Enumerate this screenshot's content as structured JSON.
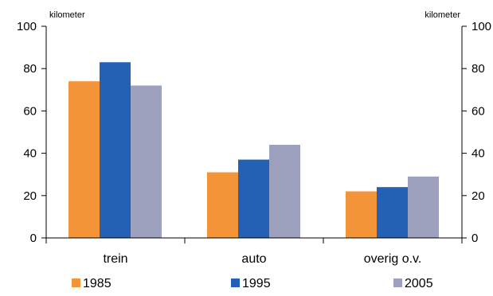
{
  "chart_data": {
    "type": "bar",
    "title": "",
    "xlabel": "",
    "ylabel_left": "kilometer",
    "ylabel_right": "kilometer",
    "categories": [
      "trein",
      "auto",
      "overig o.v."
    ],
    "series": [
      {
        "name": "1985",
        "values": [
          74,
          31,
          22
        ],
        "color": "#f39439"
      },
      {
        "name": "1995",
        "values": [
          83,
          37,
          24
        ],
        "color": "#2461b5"
      },
      {
        "name": "2005",
        "values": [
          72,
          44,
          29
        ],
        "color": "#9da1bd"
      }
    ],
    "ylim": [
      0,
      100
    ],
    "yticks": [
      0,
      20,
      40,
      60,
      80,
      100
    ],
    "grid": false,
    "legend_position": "bottom"
  }
}
